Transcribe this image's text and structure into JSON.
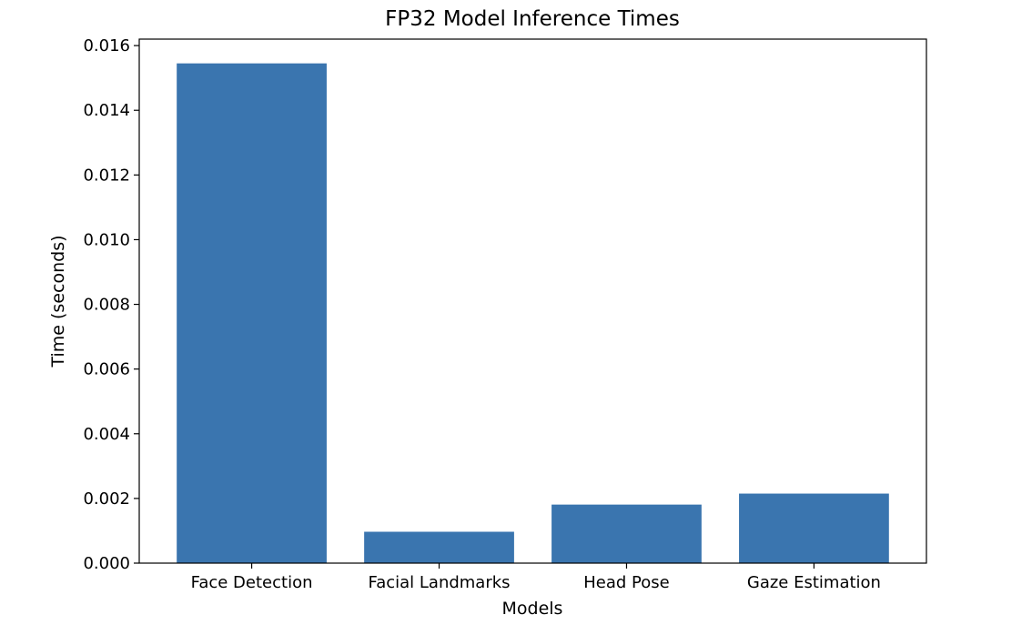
{
  "chart_data": {
    "type": "bar",
    "title": "FP32 Model Inference Times",
    "xlabel": "Models",
    "ylabel": "Time (seconds)",
    "categories": [
      "Face Detection",
      "Facial Landmarks",
      "Head Pose",
      "Gaze Estimation"
    ],
    "values": [
      0.01545,
      0.00097,
      0.00181,
      0.00215
    ],
    "ylim": [
      0,
      0.0162
    ],
    "yticks": [
      "0.000",
      "0.002",
      "0.004",
      "0.006",
      "0.008",
      "0.010",
      "0.012",
      "0.014",
      "0.016"
    ],
    "bar_color": "#3a75af",
    "grid": false,
    "legend": "none"
  }
}
